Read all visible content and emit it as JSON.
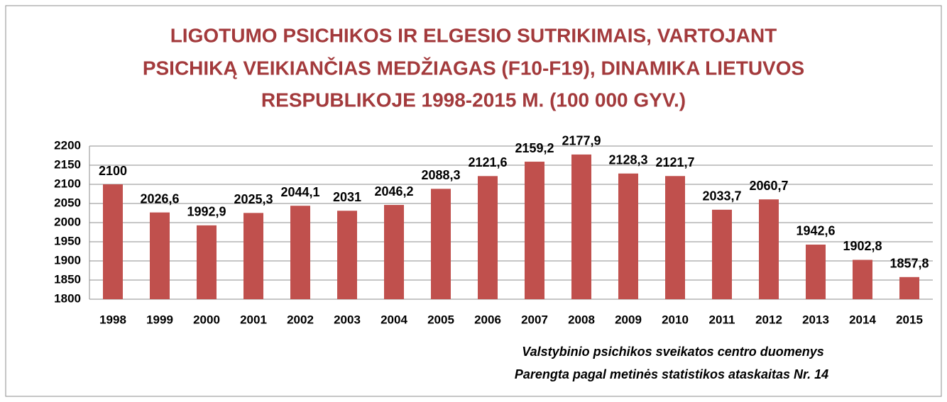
{
  "chart_data": {
    "type": "bar",
    "title": [
      "LIGOTUMO PSICHIKOS IR ELGESIO SUTRIKIMAIS, VARTOJANT",
      "PSICHIKĄ VEIKIANČIAS MEDŽIAGAS (F10-F19), DINAMIKA LIETUVOS",
      "RESPUBLIKOJE 1998-2015 M. (100 000 GYV.)"
    ],
    "categories": [
      "1998",
      "1999",
      "2000",
      "2001",
      "2002",
      "2003",
      "2004",
      "2005",
      "2006",
      "2007",
      "2008",
      "2009",
      "2010",
      "2011",
      "2012",
      "2013",
      "2014",
      "2015"
    ],
    "values": [
      2100,
      2026.6,
      1992.9,
      2025.3,
      2044.1,
      2031,
      2046.2,
      2088.3,
      2121.6,
      2159.2,
      2177.9,
      2128.3,
      2121.7,
      2033.7,
      2060.7,
      1942.6,
      1902.8,
      1857.8
    ],
    "value_labels": [
      "2100",
      "2026,6",
      "1992,9",
      "2025,3",
      "2044,1",
      "2031",
      "2046,2",
      "2088,3",
      "2121,6",
      "2159,2",
      "2177,9",
      "2128,3",
      "2121,7",
      "2033,7",
      "2060,7",
      "1942,6",
      "1902,8",
      "1857,8"
    ],
    "color": "#c0504d",
    "ylim": [
      1800,
      2200
    ],
    "yticks": [
      1800,
      1850,
      1900,
      1950,
      2000,
      2050,
      2100,
      2150,
      2200
    ],
    "grid": true,
    "annotations": [
      "Valstybinio psichikos sveikatos centro duomenys",
      "Parengta pagal metinės statistikos ataskaitas Nr. 14"
    ]
  }
}
